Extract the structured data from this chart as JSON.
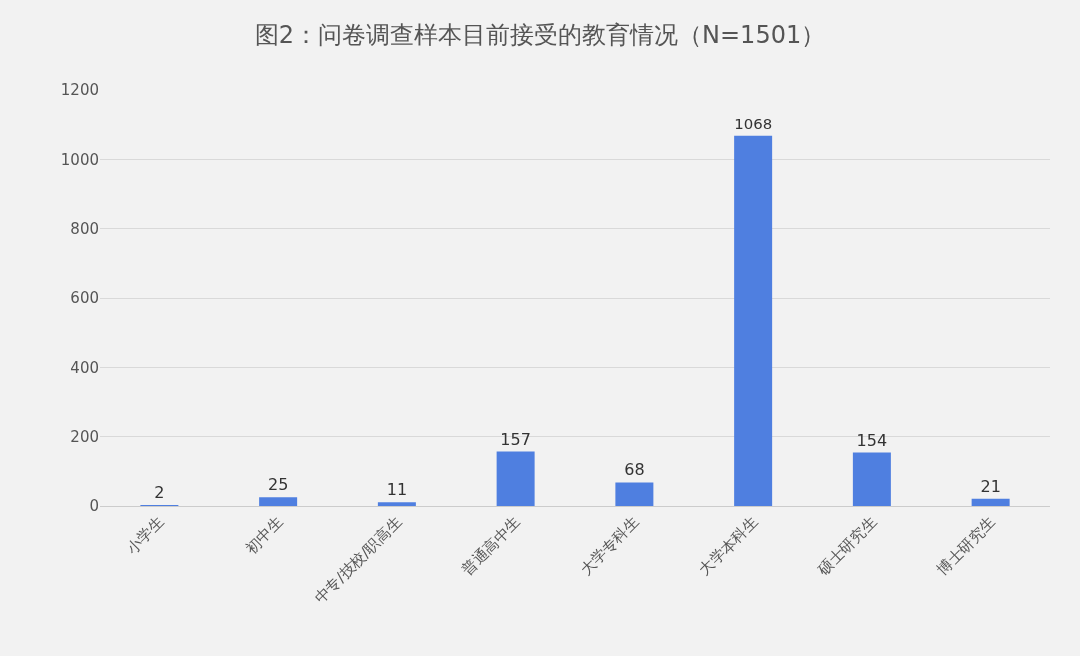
{
  "chart_data": {
    "type": "bar",
    "title": "图2：问卷调查样本目前接受的教育情况（N=1501）",
    "categories": [
      "小学生",
      "初中生",
      "中专/技校/职高生",
      "普通高中生",
      "大学专科生",
      "大学本科生",
      "硕士研究生",
      "博士研究生"
    ],
    "values": [
      2,
      25,
      11,
      157,
      68,
      1068,
      154,
      21
    ],
    "color": "#4f7fe0",
    "ylim": [
      0,
      1200
    ],
    "yticks": [
      0,
      200,
      400,
      600,
      800,
      1000,
      1200
    ],
    "grid": "y",
    "data_labels": true
  }
}
